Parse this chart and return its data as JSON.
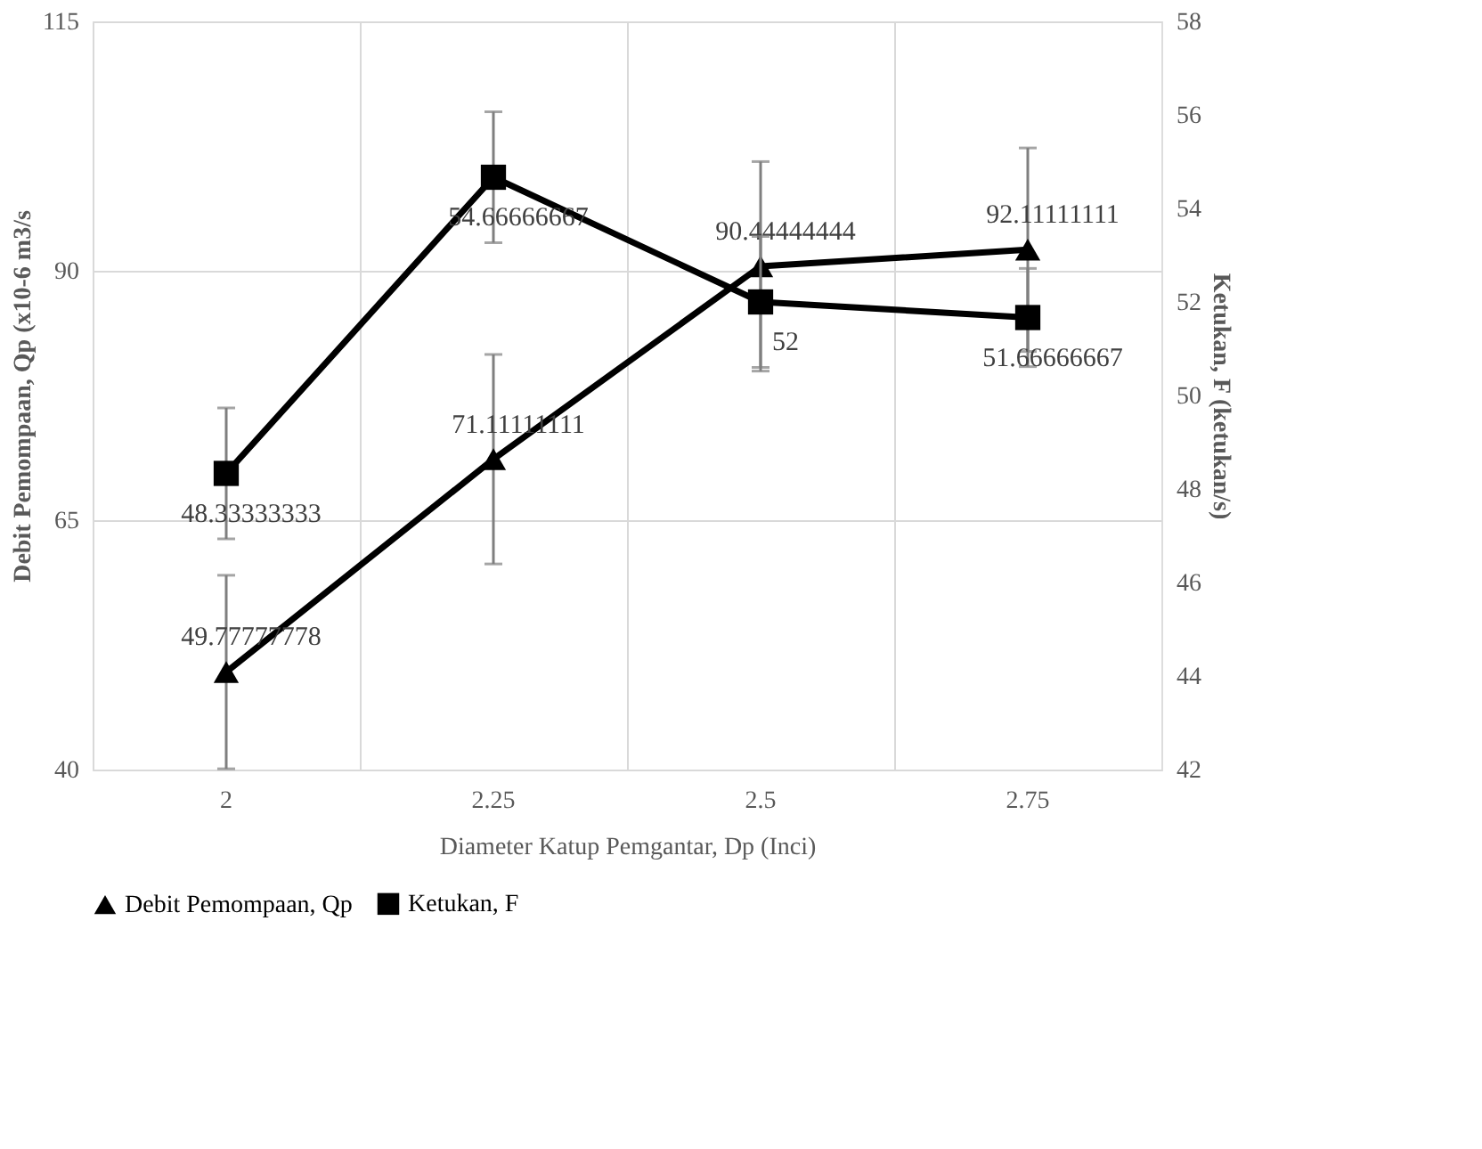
{
  "chart_data": {
    "type": "line",
    "xlabel": "Diameter Katup Pemgantar, Dp (Inci)",
    "ylabel": "Debit Pemompaan, Qp (x10-6 m3/s",
    "y2label": "Ketukan, F (ketukan/s)",
    "categories": [
      "2",
      "2.25",
      "2.5",
      "2.75"
    ],
    "series": [
      {
        "name": "Debit Pemompaan, Qp",
        "color": "#000000",
        "marker": "triangle",
        "values": [
          49.77777778,
          71.11111111,
          90.44444444,
          92.11111111
        ],
        "errors": [
          9.7,
          10.5,
          10.5,
          10.2
        ]
      },
      {
        "name": "Ketukan, F",
        "color": "#000000",
        "marker": "square",
        "axis": "y2",
        "values": [
          48.33333333,
          54.66666667,
          52,
          51.66666667
        ],
        "errors": [
          1.4,
          1.4,
          1.4,
          1.05
        ]
      }
    ],
    "ylim": [
      40,
      115
    ],
    "yticks": [
      40,
      65,
      90,
      115
    ],
    "y2lim": [
      42,
      58
    ],
    "y2ticks": [
      42,
      44,
      46,
      48,
      50,
      52,
      54,
      56,
      58
    ],
    "grid": true,
    "legend": "bottom",
    "data_labels": true,
    "line_style": "solid"
  }
}
